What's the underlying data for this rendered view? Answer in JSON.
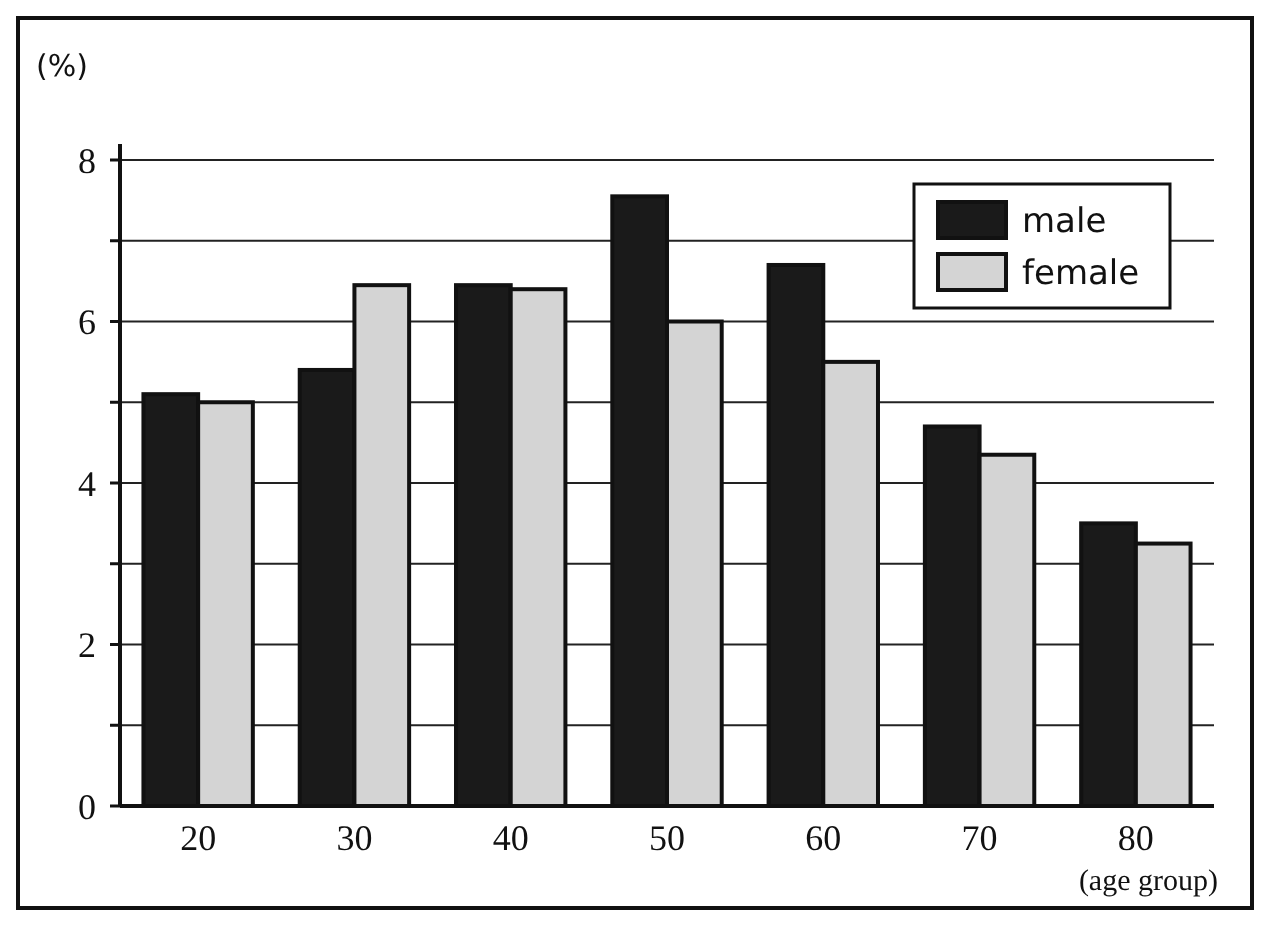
{
  "chart_data": {
    "type": "bar",
    "ylabel": "(%)",
    "xlabel": "(age group)",
    "categories": [
      "20",
      "30",
      "40",
      "50",
      "60",
      "70",
      "80"
    ],
    "series": [
      {
        "name": "male",
        "color": "#1a1a1a",
        "values": [
          5.1,
          5.4,
          6.45,
          7.55,
          6.7,
          4.7,
          3.5
        ]
      },
      {
        "name": "female",
        "color": "#d4d4d4",
        "values": [
          5.0,
          6.45,
          6.4,
          6.0,
          5.5,
          4.35,
          3.25
        ]
      }
    ],
    "ylim": [
      0,
      8
    ],
    "yticks": [
      0,
      {
        "value": 1,
        "label": null
      },
      2,
      {
        "value": 3,
        "label": null
      },
      4,
      {
        "value": 5,
        "label": null
      },
      6,
      {
        "value": 7,
        "label": null
      },
      8
    ],
    "grid": "y",
    "legend": "top right"
  }
}
